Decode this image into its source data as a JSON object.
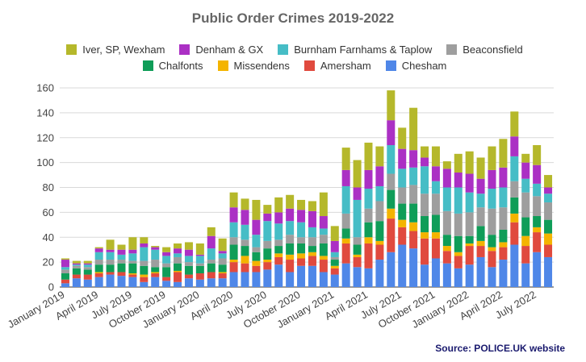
{
  "chart_data": {
    "type": "bar",
    "stacked": true,
    "title": "Public Order Crimes 2019-2022",
    "xlabel": "",
    "ylabel": "",
    "ylim": [
      0,
      160
    ],
    "yticks": [
      0,
      20,
      40,
      60,
      80,
      100,
      120,
      140,
      160
    ],
    "grid": true,
    "legend_position": "top",
    "categories": [
      "2019-01",
      "2019-02",
      "2019-03",
      "2019-04",
      "2019-05",
      "2019-06",
      "2019-07",
      "2019-08",
      "2019-09",
      "2019-10",
      "2019-11",
      "2019-12",
      "2020-01",
      "2020-02",
      "2020-03",
      "2020-04",
      "2020-05",
      "2020-06",
      "2020-07",
      "2020-08",
      "2020-09",
      "2020-10",
      "2020-11",
      "2020-12",
      "2021-01",
      "2021-02",
      "2021-03",
      "2021-04",
      "2021-05",
      "2021-06",
      "2021-07",
      "2021-08",
      "2021-09",
      "2021-10",
      "2021-11",
      "2021-12",
      "2022-01",
      "2022-02",
      "2022-03",
      "2022-04",
      "2022-05",
      "2022-06",
      "2022-07",
      "2022-08"
    ],
    "tick_labels": [
      "January 2019",
      "",
      "",
      "April 2019",
      "",
      "",
      "July 2019",
      "",
      "",
      "October 2019",
      "",
      "",
      "January 2020",
      "",
      "",
      "April 2020",
      "",
      "",
      "July 2020",
      "",
      "",
      "October 2020",
      "",
      "",
      "January 2021",
      "",
      "",
      "April 2021",
      "",
      "",
      "July 2021",
      "",
      "",
      "October 2021",
      "",
      "",
      "January 2022",
      "",
      "",
      "April 2022",
      "",
      "",
      "July 2022",
      ""
    ],
    "series": [
      {
        "name": "Chesham",
        "color": "#4f87e8",
        "values": [
          3,
          7,
          6,
          8,
          10,
          9,
          8,
          4,
          8,
          5,
          4,
          7,
          6,
          7,
          7,
          12,
          12,
          12,
          14,
          18,
          12,
          17,
          17,
          12,
          10,
          19,
          16,
          15,
          22,
          28,
          34,
          31,
          18,
          23,
          19,
          15,
          18,
          24,
          16,
          22,
          34,
          19,
          28,
          24
        ]
      },
      {
        "name": "Amersham",
        "color": "#e04a3e",
        "values": [
          3,
          3,
          4,
          3,
          2,
          3,
          2,
          4,
          3,
          3,
          8,
          3,
          5,
          5,
          4,
          8,
          7,
          5,
          6,
          6,
          10,
          6,
          8,
          10,
          5,
          16,
          8,
          20,
          12,
          27,
          14,
          14,
          21,
          16,
          10,
          10,
          15,
          9,
          13,
          10,
          18,
          14,
          16,
          10
        ]
      },
      {
        "name": "Missendens",
        "color": "#f4b400",
        "values": [
          0,
          0,
          0,
          1,
          0,
          0,
          1,
          2,
          1,
          0,
          1,
          0,
          0,
          0,
          1,
          2,
          6,
          4,
          2,
          3,
          4,
          4,
          3,
          3,
          2,
          4,
          2,
          5,
          3,
          8,
          6,
          7,
          5,
          5,
          4,
          3,
          2,
          4,
          3,
          4,
          7,
          8,
          4,
          9
        ]
      },
      {
        "name": "Chalfonts",
        "color": "#0f9d58",
        "values": [
          5,
          5,
          4,
          6,
          6,
          7,
          8,
          7,
          4,
          8,
          6,
          7,
          6,
          7,
          6,
          12,
          8,
          7,
          9,
          6,
          9,
          8,
          5,
          10,
          5,
          8,
          8,
          12,
          16,
          15,
          13,
          15,
          13,
          14,
          9,
          13,
          6,
          12,
          10,
          10,
          13,
          15,
          9,
          11
        ]
      },
      {
        "name": "Beaconsfield",
        "color": "#9e9e9e",
        "values": [
          3,
          2,
          2,
          4,
          4,
          3,
          2,
          4,
          6,
          3,
          5,
          3,
          2,
          3,
          5,
          6,
          5,
          4,
          6,
          5,
          7,
          5,
          7,
          7,
          2,
          12,
          6,
          11,
          16,
          13,
          13,
          15,
          18,
          17,
          19,
          18,
          19,
          15,
          21,
          18,
          13,
          20,
          16,
          14
        ]
      },
      {
        "name": "Burnham Farnhams & Taplow",
        "color": "#46bdc6",
        "values": [
          2,
          1,
          2,
          6,
          6,
          4,
          6,
          11,
          8,
          6,
          3,
          5,
          6,
          9,
          4,
          12,
          12,
          10,
          16,
          13,
          11,
          12,
          8,
          5,
          4,
          22,
          30,
          16,
          12,
          23,
          15,
          14,
          22,
          10,
          19,
          21,
          16,
          11,
          16,
          16,
          20,
          11,
          10,
          7
        ]
      },
      {
        "name": "Denham & GX",
        "color": "#ab30c4",
        "values": [
          6,
          1,
          1,
          3,
          2,
          4,
          3,
          3,
          2,
          3,
          4,
          5,
          1,
          10,
          2,
          12,
          12,
          12,
          6,
          9,
          10,
          10,
          13,
          10,
          9,
          13,
          10,
          15,
          16,
          20,
          16,
          14,
          7,
          12,
          15,
          12,
          15,
          12,
          15,
          16,
          16,
          13,
          15,
          5
        ]
      },
      {
        "name": "Iver, SP, Wexham",
        "color": "#b5b82b",
        "values": [
          1,
          2,
          2,
          1,
          8,
          4,
          10,
          5,
          1,
          4,
          4,
          6,
          9,
          7,
          10,
          12,
          9,
          16,
          7,
          12,
          11,
          8,
          8,
          19,
          12,
          18,
          22,
          22,
          16,
          24,
          17,
          34,
          9,
          16,
          6,
          15,
          18,
          17,
          19,
          23,
          20,
          7,
          16,
          10
        ]
      }
    ]
  },
  "legend_rows": [
    [
      "Iver, SP, Wexham",
      "Denham & GX",
      "Burnham Farnhams & Taplow",
      "Beaconsfield"
    ],
    [
      "Chalfonts",
      "Missendens",
      "Amersham",
      "Chesham"
    ]
  ],
  "source_note": "Source: POLICE.UK website"
}
